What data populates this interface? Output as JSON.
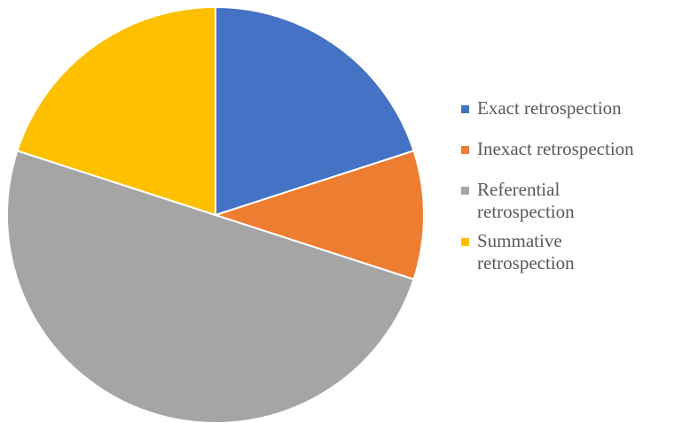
{
  "chart_data": {
    "type": "pie",
    "title": "",
    "slices": [
      {
        "label": "Exact retrospection",
        "value": 20,
        "color": "#4472C4"
      },
      {
        "label": "Inexact retrospection",
        "value": 10,
        "color": "#ED7D31"
      },
      {
        "label": "Referential retrospection",
        "value": 50,
        "color": "#A5A5A5"
      },
      {
        "label": "Summative retrospection",
        "value": 20,
        "color": "#FFC000"
      }
    ],
    "legend": {
      "position": "right",
      "items": [
        {
          "line1": "Exact retrospection",
          "line2": ""
        },
        {
          "line1": "Inexact retrospection",
          "line2": ""
        },
        {
          "line1": "Referential",
          "line2": "retrospection"
        },
        {
          "line1": "Summative",
          "line2": "retrospection"
        }
      ]
    }
  }
}
